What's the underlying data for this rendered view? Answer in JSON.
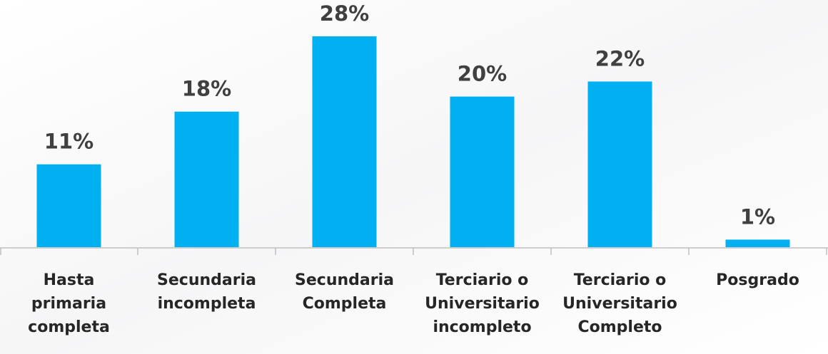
{
  "chart_data": {
    "type": "bar",
    "categories": [
      "Hasta primaria completa",
      "Secundaria incompleta",
      "Secundaria Completa",
      "Terciario o Universitario incompleto",
      "Terciario o Universitario Completo",
      "Posgrado"
    ],
    "values": [
      11,
      18,
      28,
      20,
      22,
      1
    ],
    "value_labels": [
      "11%",
      "18%",
      "28%",
      "20%",
      "22%",
      "1%"
    ],
    "color": "#00b0f0"
  }
}
